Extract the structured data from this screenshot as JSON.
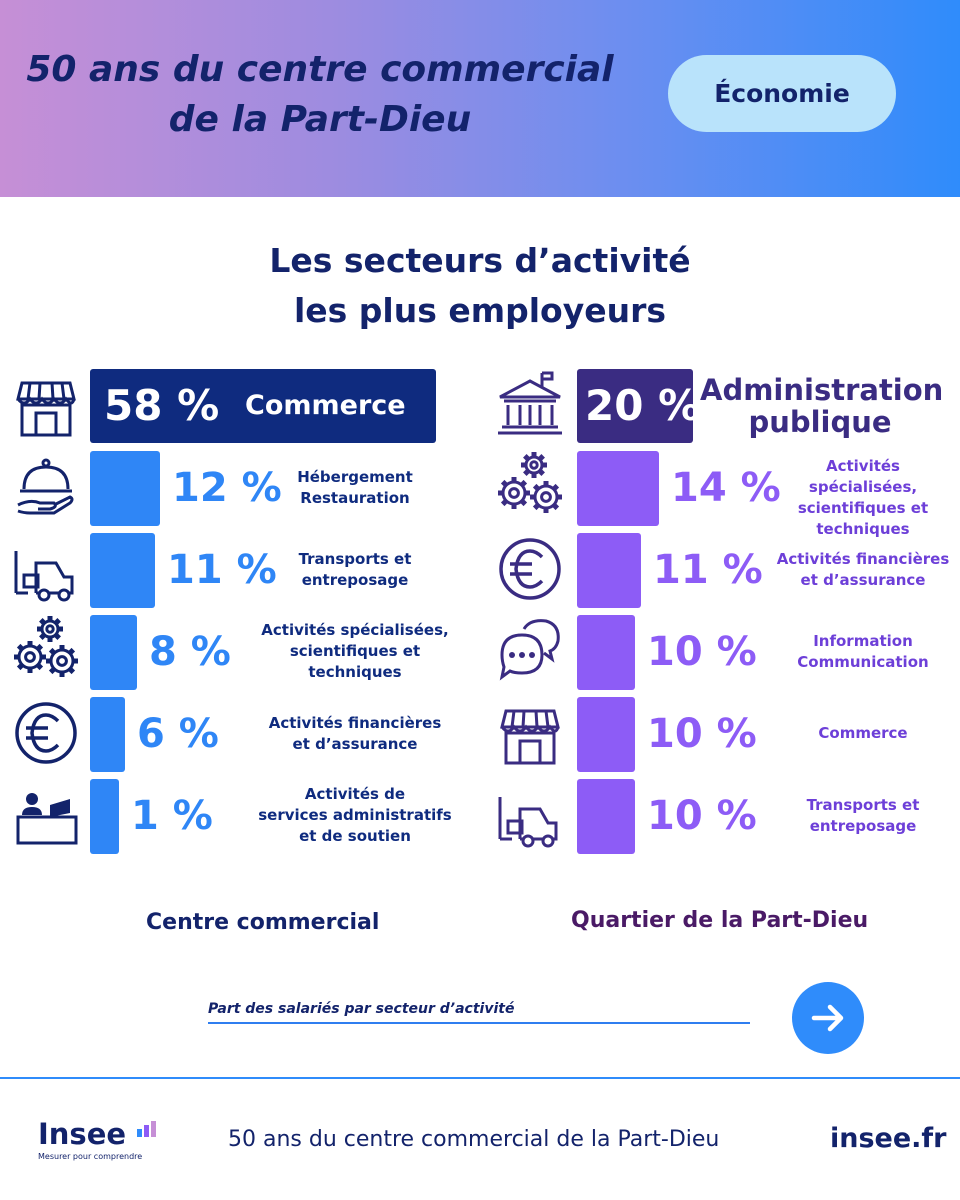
{
  "header": {
    "title_line1": "50 ans du centre commercial",
    "title_line2": "de la Part-Dieu",
    "tag": "Économie"
  },
  "main_title": {
    "line1": "Les secteurs d’activité",
    "line2": "les plus employeurs"
  },
  "colors": {
    "navy": "#13236b",
    "left_main": "#0f2b7f",
    "left_bar": "#2f86f6",
    "left_text": "#2f86f6",
    "right_main": "#3a2c82",
    "right_bar": "#8d5cf6",
    "right_text": "#8d5cf6",
    "right_lbl": "#6d3fd8",
    "footer_right_lbl": "#4a1a66"
  },
  "chart_data": [
    {
      "type": "bar",
      "title": "Centre commercial",
      "unit": "%",
      "categories": [
        "Commerce",
        "Hébergement Restauration",
        "Transports et entreposage",
        "Activités spécialisées, scientifiques et techniques",
        "Activités financières et d’assurance",
        "Activités de services administratifs et de soutien"
      ],
      "values": [
        58,
        12,
        11,
        8,
        6,
        1
      ],
      "value_labels": [
        "58 %",
        "12 %",
        "11 %",
        "8 %",
        "6 %",
        "1 %"
      ],
      "label_lines": [
        [
          "Commerce"
        ],
        [
          "Hébergement",
          "Restauration"
        ],
        [
          "Transports et",
          "entreposage"
        ],
        [
          "Activités spécialisées,",
          "scientifiques et",
          "techniques"
        ],
        [
          "Activités financières",
          "et d’assurance"
        ],
        [
          "Activités de",
          "services administratifs",
          "et de soutien"
        ]
      ],
      "icons": [
        "store-icon",
        "serving-cloche-icon",
        "forklift-icon",
        "gears-icon",
        "euro-icon",
        "reception-desk-icon"
      ]
    },
    {
      "type": "bar",
      "title": "Quartier de la Part-Dieu",
      "unit": "%",
      "categories": [
        "Administration publique",
        "Activités spécialisées, scientifiques et techniques",
        "Activités financières et d’assurance",
        "Information Communication",
        "Commerce",
        "Transports et entreposage"
      ],
      "values": [
        20,
        14,
        11,
        10,
        10,
        10
      ],
      "value_labels": [
        "20 %",
        "14 %",
        "11 %",
        "10 %",
        "10 %",
        "10 %"
      ],
      "label_lines": [
        [
          "Administration",
          "publique"
        ],
        [
          "Activités spécialisées,",
          "scientifiques et",
          "techniques"
        ],
        [
          "Activités financières",
          "et d’assurance"
        ],
        [
          "Information",
          "Communication"
        ],
        [
          "Commerce"
        ],
        [
          "Transports et",
          "entreposage"
        ]
      ],
      "icons": [
        "government-building-icon",
        "gears-icon",
        "euro-icon",
        "chat-bubbles-icon",
        "store-icon",
        "forklift-icon"
      ]
    }
  ],
  "legend": {
    "left": "Centre commercial",
    "right": "Quartier de la Part-Dieu"
  },
  "note": "Part des salariés par secteur d’activité",
  "footer": {
    "logo": "Insee",
    "logo_tagline": "Mesurer pour comprendre",
    "middle": "50 ans du centre commercial de la Part-Dieu",
    "site": "insee.fr"
  }
}
